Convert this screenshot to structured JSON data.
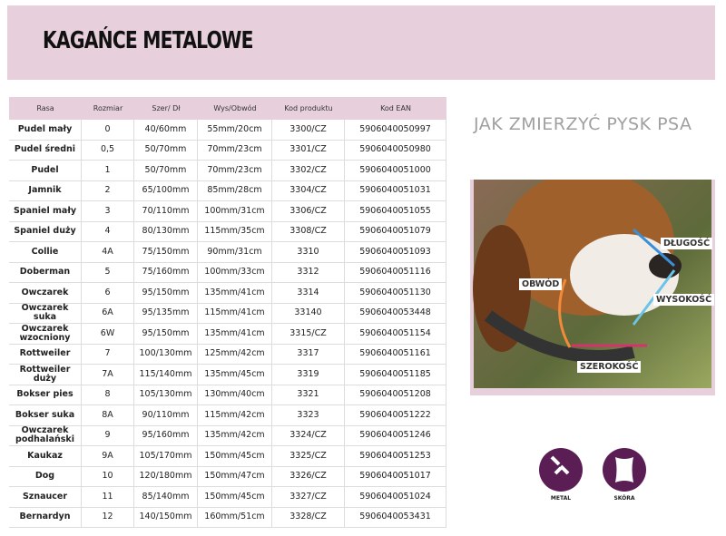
{
  "header": {
    "title": "KAGAŃCE METALOWE"
  },
  "table": {
    "columns": [
      "Rasa",
      "Rozmiar",
      "Szer/ Dł",
      "Wys/Obwód",
      "Kod produktu",
      "Kod EAN"
    ],
    "rows": [
      [
        "Pudel mały",
        "0",
        "40/60mm",
        "55mm/20cm",
        "3300/CZ",
        "5906040050997"
      ],
      [
        "Pudel średni",
        "0,5",
        "50/70mm",
        "70mm/23cm",
        "3301/CZ",
        "5906040050980"
      ],
      [
        "Pudel",
        "1",
        "50/70mm",
        "70mm/23cm",
        "3302/CZ",
        "5906040051000"
      ],
      [
        "Jamnik",
        "2",
        "65/100mm",
        "85mm/28cm",
        "3304/CZ",
        "5906040051031"
      ],
      [
        "Spaniel mały",
        "3",
        "70/110mm",
        "100mm/31cm",
        "3306/CZ",
        "5906040051055"
      ],
      [
        "Spaniel duży",
        "4",
        "80/130mm",
        "115mm/35cm",
        "3308/CZ",
        "5906040051079"
      ],
      [
        "Collie",
        "4A",
        "75/150mm",
        "90mm/31cm",
        "3310",
        "5906040051093"
      ],
      [
        "Doberman",
        "5",
        "75/160mm",
        "100mm/33cm",
        "3312",
        "5906040051116"
      ],
      [
        "Owczarek",
        "6",
        "95/150mm",
        "135mm/41cm",
        "3314",
        "5906040051130"
      ],
      [
        "Owczarek suka",
        "6A",
        "95/135mm",
        "115mm/41cm",
        "33140",
        "5906040053448"
      ],
      [
        "Owczarek wzocniony",
        "6W",
        "95/150mm",
        "135mm/41cm",
        "3315/CZ",
        "5906040051154"
      ],
      [
        "Rottweiler",
        "7",
        "100/130mm",
        "125mm/42cm",
        "3317",
        "5906040051161"
      ],
      [
        "Rottweiler duży",
        "7A",
        "115/140mm",
        "135mm/45cm",
        "3319",
        "5906040051185"
      ],
      [
        "Bokser pies",
        "8",
        "105/130mm",
        "130mm/40cm",
        "3321",
        "5906040051208"
      ],
      [
        "Bokser suka",
        "8A",
        "90/110mm",
        "115mm/42cm",
        "3323",
        "5906040051222"
      ],
      [
        "Owczarek podhalański",
        "9",
        "95/160mm",
        "135mm/42cm",
        "3324/CZ",
        "5906040051246"
      ],
      [
        "Kaukaz",
        "9A",
        "105/170mm",
        "150mm/45cm",
        "3325/CZ",
        "5906040051253"
      ],
      [
        "Dog",
        "10",
        "120/180mm",
        "150mm/47cm",
        "3326/CZ",
        "5906040051017"
      ],
      [
        "Sznaucer",
        "11",
        "85/140mm",
        "150mm/45cm",
        "3327/CZ",
        "5906040051024"
      ],
      [
        "Bernardyn",
        "12",
        "140/150mm",
        "160mm/51cm",
        "3328/CZ",
        "5906040053431"
      ]
    ]
  },
  "guide": {
    "title": "JAK ZMIERZYĆ PYSK PSA",
    "labels": {
      "length": "DŁUGOŚĆ",
      "circumference": "OBWÓD",
      "height": "WYSOKOŚĆ",
      "width": "SZEROKOŚĆ"
    }
  },
  "icons": [
    {
      "label": "METAL"
    },
    {
      "label": "SKÓRA"
    }
  ]
}
